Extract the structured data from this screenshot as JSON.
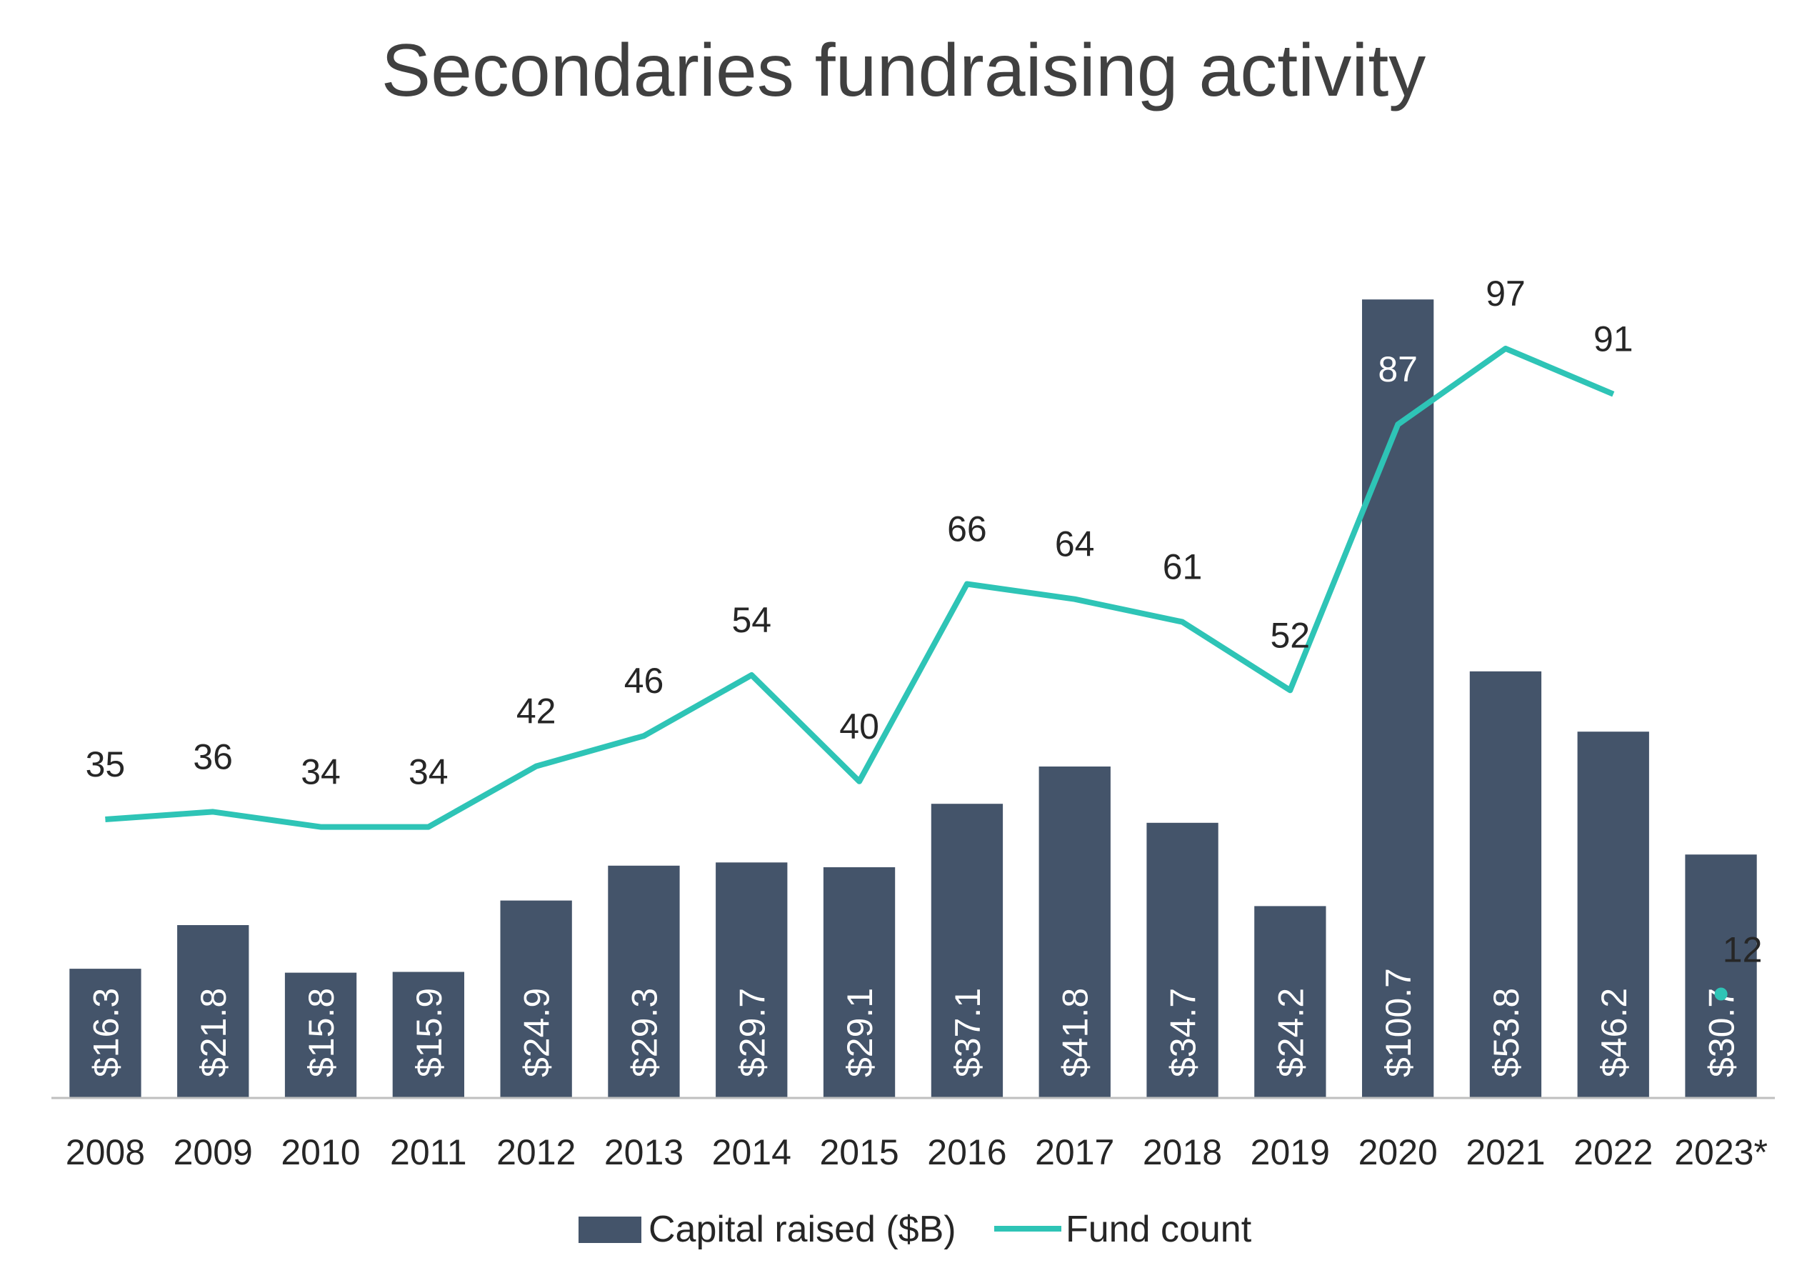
{
  "chart_data": {
    "type": "bar",
    "title": "Secondaries fundraising activity",
    "categories": [
      "2008",
      "2009",
      "2010",
      "2011",
      "2012",
      "2013",
      "2014",
      "2015",
      "2016",
      "2017",
      "2018",
      "2019",
      "2020",
      "2021",
      "2022",
      "2023*"
    ],
    "series": [
      {
        "name": "Capital raised ($B)",
        "type": "bar",
        "color": "#44546a",
        "values": [
          16.3,
          21.8,
          15.8,
          15.9,
          24.9,
          29.3,
          29.7,
          29.1,
          37.1,
          41.8,
          34.7,
          24.2,
          100.7,
          53.8,
          46.2,
          30.7
        ],
        "labels": [
          "$16.3",
          "$21.8",
          "$15.8",
          "$15.9",
          "$24.9",
          "$29.3",
          "$29.7",
          "$29.1",
          "$37.1",
          "$41.8",
          "$34.7",
          "$24.2",
          "$100.7",
          "$53.8",
          "$46.2",
          "$30.7"
        ]
      },
      {
        "name": "Fund count",
        "type": "line",
        "color": "#2ec4b6",
        "values": [
          35,
          36,
          34,
          34,
          42,
          46,
          54,
          40,
          66,
          64,
          61,
          52,
          87,
          97,
          91,
          12
        ],
        "labels": [
          "35",
          "36",
          "34",
          "34",
          "42",
          "46",
          "54",
          "40",
          "66",
          "64",
          "61",
          "52",
          "87",
          "97",
          "91",
          "12"
        ]
      }
    ],
    "legend": {
      "placement": "bottom"
    },
    "grid": false
  }
}
